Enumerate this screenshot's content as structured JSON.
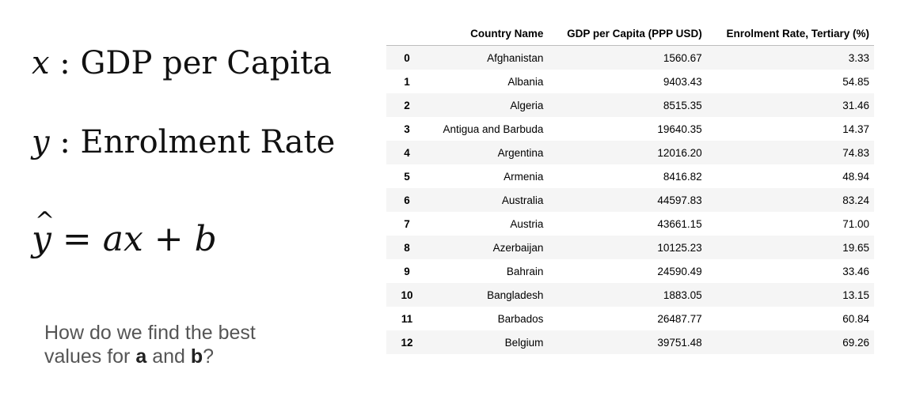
{
  "equations": {
    "x_var": "x",
    "x_rest": " : GDP per Capita",
    "y_var": "y",
    "y_rest": " : Enrolment Rate",
    "yhat_var": "y",
    "yhat_eq": " = ",
    "yhat_a": "a",
    "yhat_x": "x",
    "yhat_plus": " + ",
    "yhat_b": "b"
  },
  "question": {
    "line1": "How do we find the best",
    "line2_pre": "values for ",
    "a": "a",
    "and": " and ",
    "b": "b",
    "end": "?"
  },
  "table": {
    "columns": [
      "",
      "Country Name",
      "GDP per Capita (PPP USD)",
      "Enrolment Rate, Tertiary (%)"
    ],
    "rows": [
      [
        "0",
        "Afghanistan",
        "1560.67",
        "3.33"
      ],
      [
        "1",
        "Albania",
        "9403.43",
        "54.85"
      ],
      [
        "2",
        "Algeria",
        "8515.35",
        "31.46"
      ],
      [
        "3",
        "Antigua and Barbuda",
        "19640.35",
        "14.37"
      ],
      [
        "4",
        "Argentina",
        "12016.20",
        "74.83"
      ],
      [
        "5",
        "Armenia",
        "8416.82",
        "48.94"
      ],
      [
        "6",
        "Australia",
        "44597.83",
        "83.24"
      ],
      [
        "7",
        "Austria",
        "43661.15",
        "71.00"
      ],
      [
        "8",
        "Azerbaijan",
        "10125.23",
        "19.65"
      ],
      [
        "9",
        "Bahrain",
        "24590.49",
        "33.46"
      ],
      [
        "10",
        "Bangladesh",
        "1883.05",
        "13.15"
      ],
      [
        "11",
        "Barbados",
        "26487.77",
        "60.84"
      ],
      [
        "12",
        "Belgium",
        "39751.48",
        "69.26"
      ]
    ]
  }
}
